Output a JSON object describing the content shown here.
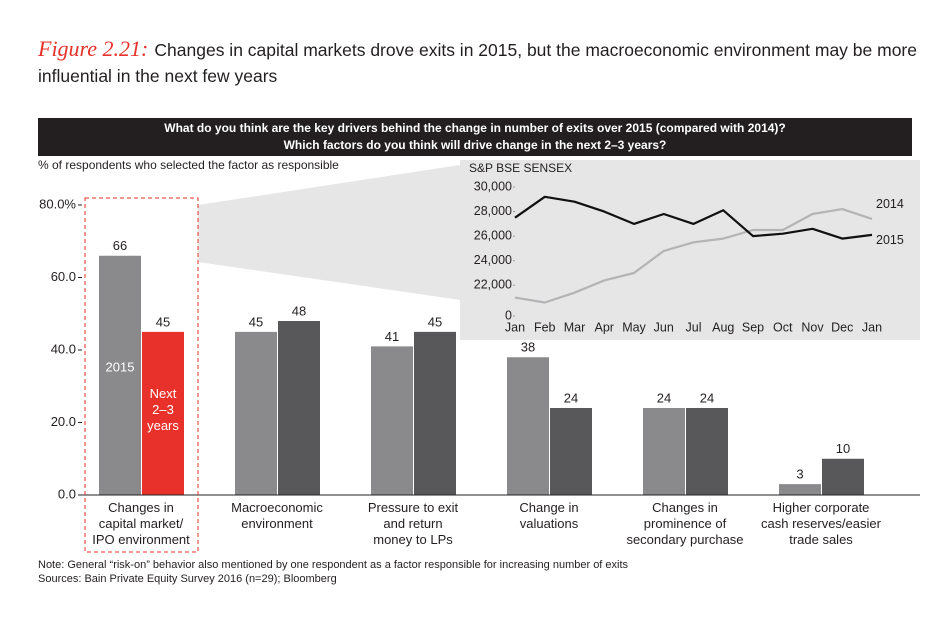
{
  "header": {
    "label": "Figure 2.21:",
    "title": "Changes in capital markets drove exits in 2015, but the macroeconomic environment may be more influential in the next few years"
  },
  "banner": [
    "What do you think are the key drivers behind the change in number of exits over 2015 (compared with 2014)?",
    "Which factors do you think will drive change in the next 2–3 years?"
  ],
  "footer": [
    "Note: General “risk-on” behavior also mentioned by one respondent as a factor responsible for increasing number of exits",
    "Sources: Bain Private Equity Survey 2016 (n=29); Bloomberg"
  ],
  "chart_data": [
    {
      "type": "bar",
      "ylabel": "% of respondents who selected the factor as responsible",
      "categories": [
        "Changes in\ncapital market/\nIPO environment",
        "Macroeconomic\nenvironment",
        "Pressure to exit\nand return\nmoney to LPs",
        "Change in\nvaluations",
        "Changes in\nprominence of\nsecondary purchase",
        "Higher corporate\ncash reserves/easier\ntrade sales"
      ],
      "series": [
        {
          "name": "2015",
          "color": "#8a8a8c",
          "values": [
            66,
            45,
            41,
            38,
            24,
            3
          ]
        },
        {
          "name": "Next 2–3 years",
          "color": "#58585a",
          "colors": [
            "#e8312a",
            "#58585a",
            "#58585a",
            "#58585a",
            "#58585a",
            "#58585a"
          ],
          "values": [
            45,
            48,
            45,
            24,
            24,
            10
          ]
        }
      ],
      "ylim": [
        0,
        80
      ],
      "yticks": [
        {
          "value": 0,
          "label": "0.0"
        },
        {
          "value": 20,
          "label": "20.0"
        },
        {
          "value": 40,
          "label": "40.0"
        },
        {
          "value": 60,
          "label": "60.0"
        },
        {
          "value": 80,
          "label": "80.0%"
        }
      ],
      "highlight_color": "#e8312a"
    },
    {
      "type": "line",
      "title": "S&P BSE SENSEX",
      "categories": [
        "Jan",
        "Feb",
        "Mar",
        "Apr",
        "May",
        "Jun",
        "Jul",
        "Aug",
        "Sep",
        "Oct",
        "Nov",
        "Dec",
        "Jan"
      ],
      "series": [
        {
          "name": "2014",
          "color": "#b4b4b6",
          "values": [
            21000,
            20600,
            21400,
            22400,
            23000,
            24800,
            25500,
            25800,
            26500,
            26500,
            27800,
            28200,
            27400
          ]
        },
        {
          "name": "2015",
          "color": "#111111",
          "values": [
            27500,
            29200,
            28800,
            28000,
            27000,
            27800,
            27000,
            28100,
            26000,
            26200,
            26600,
            25800,
            26100
          ]
        }
      ],
      "ylim": [
        19500,
        30000
      ],
      "axis_break": true,
      "yticks": [
        0,
        {
          "value": 22000,
          "label": "22,000"
        },
        {
          "value": 24000,
          "label": "24,000"
        },
        {
          "value": 26000,
          "label": "26,000"
        },
        {
          "value": 28000,
          "label": "28,000"
        },
        {
          "value": 30000,
          "label": "30,000"
        }
      ],
      "background": "#e6e6e7"
    }
  ]
}
